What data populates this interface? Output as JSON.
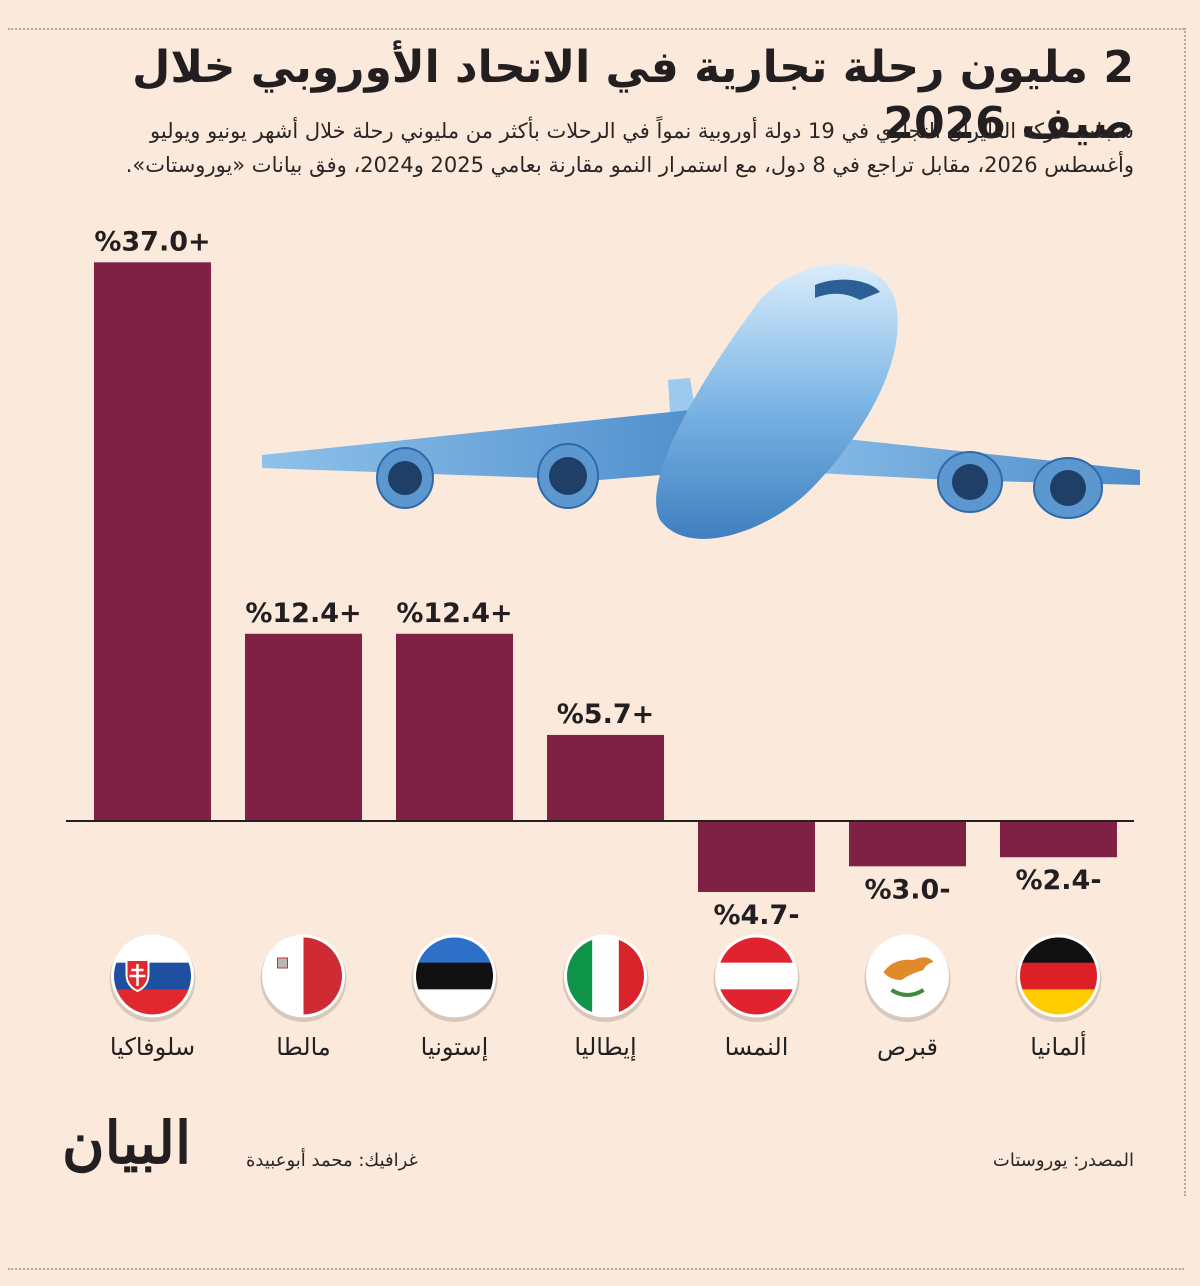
{
  "title": "2 مليون رحلة تجارية في الاتحاد الأوروبي خلال صيف 2026",
  "subtitle": "سجلت حركة الطيران التجاري في 19 دولة أوروبية نمواً في الرحلات بأكثر من مليوني رحلة خلال أشهر يونيو ويوليو وأغسطس 2026، مقابل تراجع في 8 دول، مع استمرار النمو مقارنة بعامي 2025 و2024، وفق بيانات «يوروستات».",
  "source": "المصدر: يوروستات",
  "credit": "غرافيك: محمد أبوعبيدة",
  "logo": "البيان",
  "colors": {
    "bar": "#7f2145",
    "background": "#fbeadb",
    "plane": "#6aa7dc"
  },
  "chart_data": {
    "type": "bar",
    "categories": [
      "سلوفاكيا",
      "مالطا",
      "إستونيا",
      "إيطاليا",
      "النمسا",
      "قبرص",
      "ألمانيا"
    ],
    "values": [
      37.0,
      12.4,
      12.4,
      5.7,
      -4.7,
      -3.0,
      -2.4
    ],
    "data_labels": [
      "%37.0+",
      "%12.4+",
      "%12.4+",
      "%5.7+",
      "%4.7-",
      "%3.0-",
      "%2.4-"
    ],
    "flags": [
      "slovakia-flag-icon",
      "malta-flag-icon",
      "estonia-flag-icon",
      "italy-flag-icon",
      "austria-flag-icon",
      "cyprus-flag-icon",
      "germany-flag-icon"
    ],
    "grid": false,
    "legend": "none"
  }
}
